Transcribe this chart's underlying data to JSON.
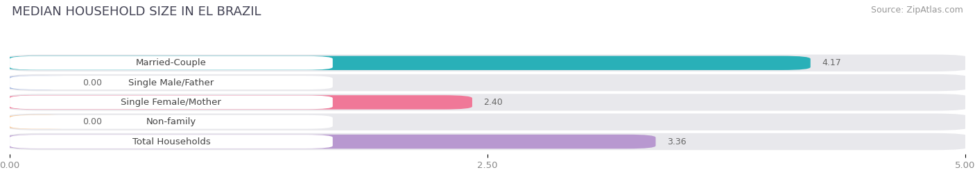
{
  "title": "MEDIAN HOUSEHOLD SIZE IN EL BRAZIL",
  "source": "Source: ZipAtlas.com",
  "categories": [
    "Married-Couple",
    "Single Male/Father",
    "Single Female/Mother",
    "Non-family",
    "Total Households"
  ],
  "values": [
    4.17,
    0.0,
    2.4,
    0.0,
    3.36
  ],
  "bar_colors": [
    "#29b0b8",
    "#a0b4e0",
    "#f07898",
    "#f8c898",
    "#b898d0"
  ],
  "bar_bg_color": "#e8e8ec",
  "xlim": [
    0,
    5.0
  ],
  "xticks": [
    0.0,
    2.5,
    5.0
  ],
  "xticklabels": [
    "0.00",
    "2.50",
    "5.00"
  ],
  "title_fontsize": 13,
  "source_fontsize": 9,
  "label_fontsize": 9.5,
  "value_fontsize": 9,
  "background_color": "#ffffff",
  "plot_bg_color": "#f0f0f0"
}
